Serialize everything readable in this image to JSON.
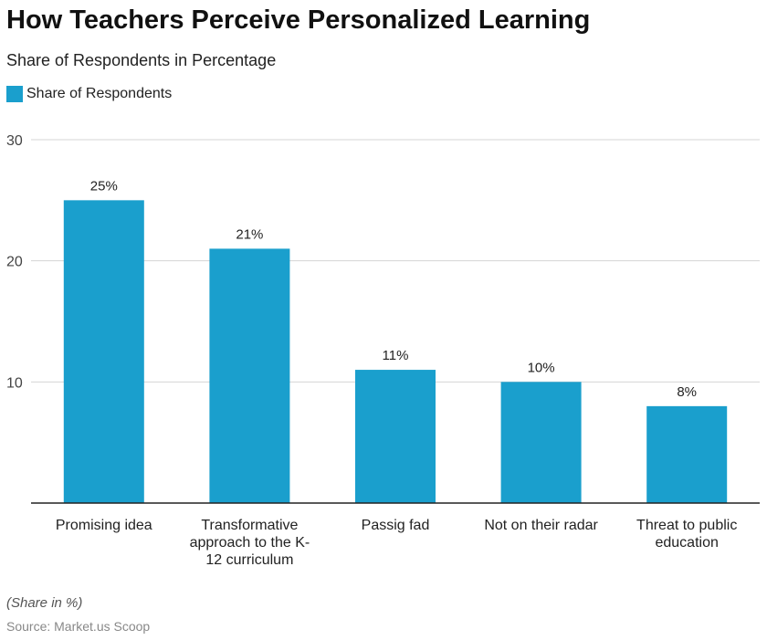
{
  "chart_data": {
    "type": "bar",
    "title": "How Teachers Perceive Personalized Learning",
    "subtitle": "Share of Respondents in Percentage",
    "legend": [
      "Share of Respondents"
    ],
    "legend_position": "top-left",
    "categories": [
      "Promising idea",
      "Transformative approach to the K-12 curriculum",
      "Passig fad",
      "Not on their radar",
      "Threat to public education"
    ],
    "category_lines": [
      [
        "Promising idea"
      ],
      [
        "Transformative",
        "approach to the K-",
        "12 curriculum"
      ],
      [
        "Passig fad"
      ],
      [
        "Not on their radar"
      ],
      [
        "Threat to public",
        "education"
      ]
    ],
    "values": [
      25,
      21,
      11,
      10,
      8
    ],
    "data_labels": [
      "25%",
      "21%",
      "11%",
      "10%",
      "8%"
    ],
    "yticks": [
      10,
      20,
      30
    ],
    "ylim": [
      0,
      30
    ],
    "grid": true,
    "color": "#1a9fcd"
  },
  "footer": {
    "note": "(Share in %)",
    "source": "Source: Market.us Scoop"
  }
}
